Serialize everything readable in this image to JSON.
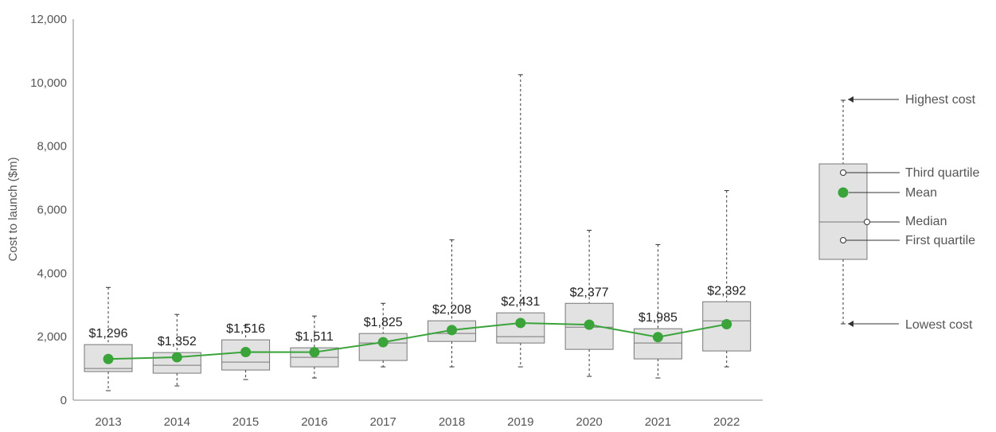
{
  "chart_data": {
    "type": "box",
    "ylabel": "Cost to launch ($m)",
    "ylim": [
      0,
      12000
    ],
    "yticks": [
      "0",
      "2,000",
      "4,000",
      "6,000",
      "8,000",
      "10,000",
      "12,000"
    ],
    "yticks_values": [
      0,
      2000,
      4000,
      6000,
      8000,
      10000,
      12000
    ],
    "categories": [
      "2013",
      "2014",
      "2015",
      "2016",
      "2017",
      "2018",
      "2019",
      "2020",
      "2021",
      "2022"
    ],
    "boxes": [
      {
        "min": 300,
        "q1": 900,
        "median": 1000,
        "q3": 1750,
        "max": 3550
      },
      {
        "min": 450,
        "q1": 850,
        "median": 1100,
        "q3": 1500,
        "max": 2700
      },
      {
        "min": 650,
        "q1": 950,
        "median": 1200,
        "q3": 1900,
        "max": 2350
      },
      {
        "min": 700,
        "q1": 1050,
        "median": 1350,
        "q3": 1650,
        "max": 2650
      },
      {
        "min": 1050,
        "q1": 1250,
        "median": 1800,
        "q3": 2100,
        "max": 3050
      },
      {
        "min": 1050,
        "q1": 1850,
        "median": 2100,
        "q3": 2500,
        "max": 5050
      },
      {
        "min": 1050,
        "q1": 1800,
        "median": 2000,
        "q3": 2750,
        "max": 10250
      },
      {
        "min": 750,
        "q1": 1600,
        "median": 2300,
        "q3": 3050,
        "max": 5350
      },
      {
        "min": 700,
        "q1": 1300,
        "median": 1800,
        "q3": 2250,
        "max": 4900
      },
      {
        "min": 1050,
        "q1": 1550,
        "median": 2500,
        "q3": 3100,
        "max": 6600
      }
    ],
    "mean": [
      1296,
      1352,
      1516,
      1511,
      1825,
      2208,
      2431,
      2377,
      1985,
      2392
    ],
    "mean_labels": [
      "$1,296",
      "$1,352",
      "$1,516",
      "$1,511",
      "$1,825",
      "$2,208",
      "$2,431",
      "$2,377",
      "$1,985",
      "$2,392"
    ],
    "legend": {
      "highest": "Highest cost",
      "third_quartile": "Third quartile",
      "mean": "Mean",
      "median": "Median",
      "first_quartile": "First quartile",
      "lowest": "Lowest cost"
    },
    "colors": {
      "mean": "#3aa43a",
      "box_fill": "#e2e2e2",
      "box_stroke": "#777777",
      "axis": "#888888"
    },
    "grid": false
  }
}
